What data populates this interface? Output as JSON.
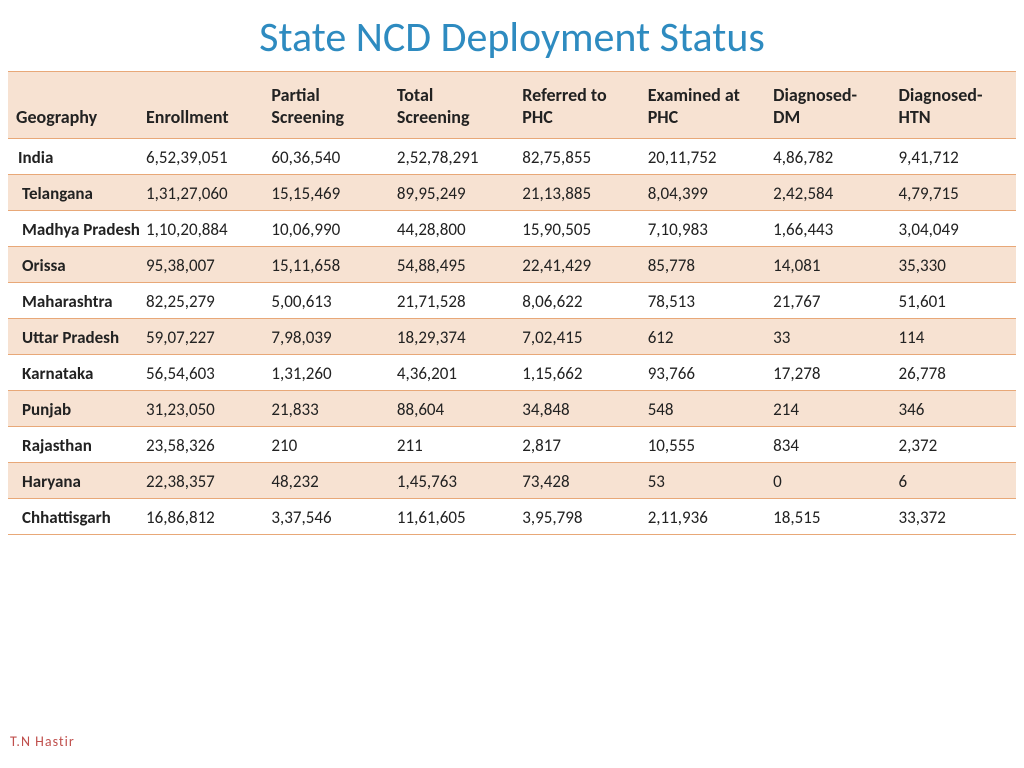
{
  "title": "State NCD Deployment Status",
  "title_color": "#2e8bc0",
  "header_bg": "#f7e2d2",
  "row_alt_bg": "#f7e2d2",
  "row_bg": "#ffffff",
  "border_color": "#e8a878",
  "text_color": "#222222",
  "footer_text": "T.N Hastir",
  "footer_color": "#c0504d",
  "columns": [
    "Geography",
    "Enrollment",
    "Partial Screening",
    "Total Screening",
    "Referred to PHC",
    "Examined at PHC",
    "Diagnosed-DM",
    "Diagnosed-HTN"
  ],
  "rows": [
    {
      "geo": "India",
      "c": [
        "6,52,39,051",
        "60,36,540",
        "2,52,78,291",
        "82,75,855",
        "20,11,752",
        "4,86,782",
        "9,41,712"
      ]
    },
    {
      "geo": "Telangana",
      "c": [
        "1,31,27,060",
        "15,15,469",
        "89,95,249",
        "21,13,885",
        "8,04,399",
        "2,42,584",
        "4,79,715"
      ]
    },
    {
      "geo": "Madhya Pradesh",
      "c": [
        "1,10,20,884",
        "10,06,990",
        "44,28,800",
        "15,90,505",
        "7,10,983",
        "1,66,443",
        "3,04,049"
      ]
    },
    {
      "geo": "Orissa",
      "c": [
        "95,38,007",
        "15,11,658",
        "54,88,495",
        "22,41,429",
        "85,778",
        "14,081",
        "35,330"
      ]
    },
    {
      "geo": "Maharashtra",
      "c": [
        "82,25,279",
        "5,00,613",
        "21,71,528",
        "8,06,622",
        "78,513",
        "21,767",
        "51,601"
      ]
    },
    {
      "geo": "Uttar Pradesh",
      "c": [
        "59,07,227",
        "7,98,039",
        "18,29,374",
        "7,02,415",
        "612",
        "33",
        "114"
      ]
    },
    {
      "geo": "Karnataka",
      "c": [
        "56,54,603",
        "1,31,260",
        "4,36,201",
        "1,15,662",
        "93,766",
        "17,278",
        "26,778"
      ]
    },
    {
      "geo": "Punjab",
      "c": [
        "31,23,050",
        "21,833",
        "88,604",
        "34,848",
        "548",
        "214",
        "346"
      ]
    },
    {
      "geo": "Rajasthan",
      "c": [
        "23,58,326",
        "210",
        "211",
        "2,817",
        "10,555",
        "834",
        "2,372"
      ]
    },
    {
      "geo": "Haryana",
      "c": [
        "22,38,357",
        "48,232",
        "1,45,763",
        "73,428",
        "53",
        "0",
        "6"
      ]
    },
    {
      "geo": "Chhattisgarh",
      "c": [
        "16,86,812",
        "3,37,546",
        "11,61,605",
        "3,95,798",
        "2,11,936",
        "18,515",
        "33,372"
      ]
    }
  ]
}
